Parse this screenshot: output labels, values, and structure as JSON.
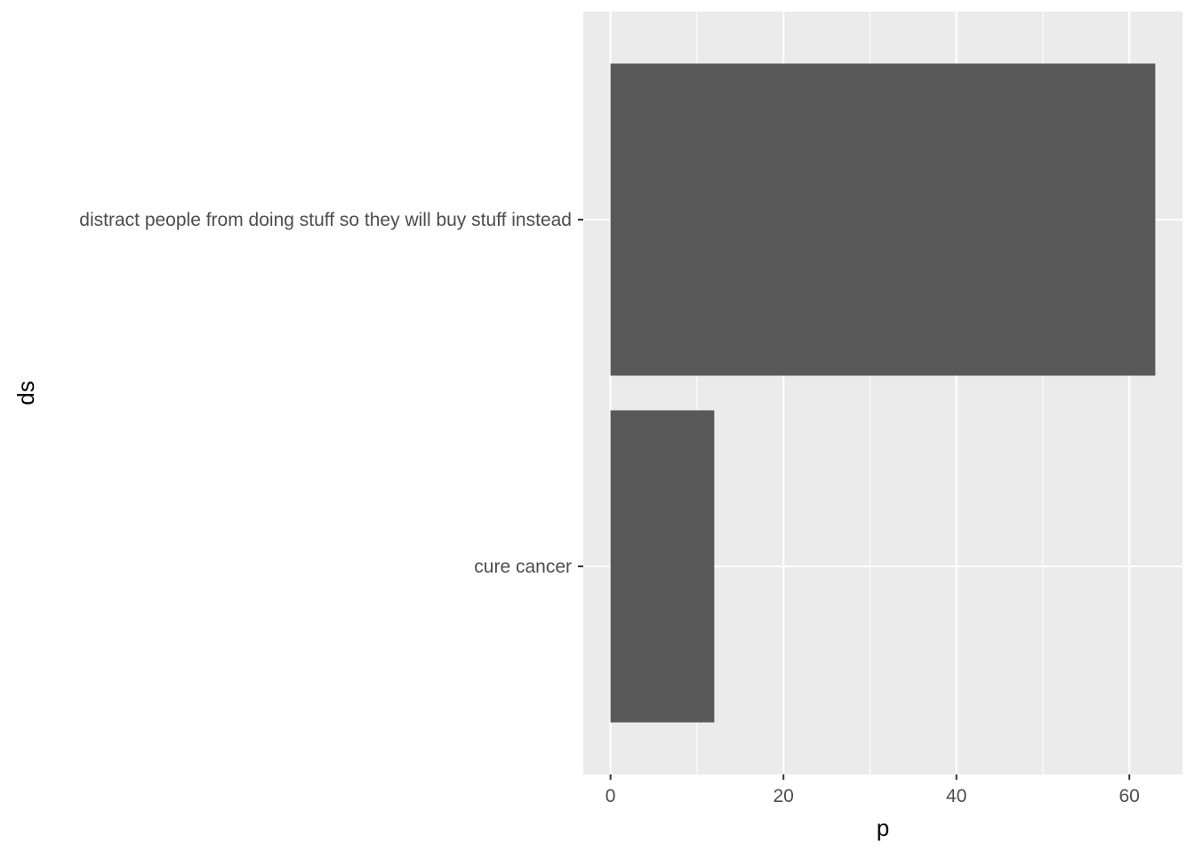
{
  "chart_data": {
    "type": "bar",
    "orientation": "horizontal",
    "categories": [
      "cure cancer",
      "distract people from doing stuff so they will buy stuff instead"
    ],
    "values": [
      12,
      63
    ],
    "title": "",
    "xlabel": "p",
    "ylabel": "ds",
    "xlim": [
      -3.15,
      66.15
    ],
    "x_ticks": [
      0,
      20,
      40,
      60
    ],
    "x_tick_labels": [
      "0",
      "20",
      "40",
      "60"
    ],
    "grid": true,
    "legend": "none",
    "colors": {
      "bar": "#595959",
      "panel_background": "#EBEBEB",
      "grid_major": "#FFFFFF",
      "text": "#4D4D4D",
      "axis_title": "#000000"
    }
  }
}
